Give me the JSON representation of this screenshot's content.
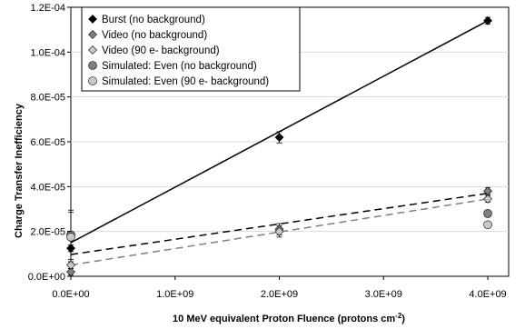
{
  "chart_data": {
    "type": "scatter",
    "title": "",
    "xlabel": "10 MeV equivalent Proton Fluence (protons cm",
    "xlabel_superscript": "-2",
    "xlabel_suffix": ")",
    "ylabel": "Charge Transfer Inefficiency",
    "xlim": [
      0,
      4200000000.0
    ],
    "ylim": [
      0,
      0.00012
    ],
    "x_ticks": [
      {
        "value": 0,
        "label": "0.0E+00"
      },
      {
        "value": 1000000000.0,
        "label": "1.0E+09"
      },
      {
        "value": 2000000000.0,
        "label": "2.0E+09"
      },
      {
        "value": 3000000000.0,
        "label": "3.0E+09"
      },
      {
        "value": 4000000000.0,
        "label": "4.0E+09"
      }
    ],
    "y_ticks": [
      {
        "value": 0,
        "label": "0.0E+00"
      },
      {
        "value": 2e-05,
        "label": "2.0E-05"
      },
      {
        "value": 4e-05,
        "label": "4.0E-05"
      },
      {
        "value": 6e-05,
        "label": "6.0E-05"
      },
      {
        "value": 8e-05,
        "label": "8.0E-05"
      },
      {
        "value": 0.0001,
        "label": "1.0E-04"
      },
      {
        "value": 0.00012,
        "label": "1.2E-04"
      }
    ],
    "legend_position": "top-left",
    "series": [
      {
        "name": "Burst (no background)",
        "marker": "diamond",
        "color": "#000000",
        "points": [
          {
            "x": 0,
            "y": 1.25e-05,
            "err": 1.5e-06
          },
          {
            "x": 2000000000.0,
            "y": 6.2e-05,
            "err": 2.5e-06
          },
          {
            "x": 4000000000.0,
            "y": 0.000114,
            "err": 1.5e-06
          }
        ],
        "fit": {
          "x": [
            0,
            4000000000.0
          ],
          "y": [
            1.5e-05,
            0.000114
          ],
          "dash": "solid",
          "color": "#000000"
        }
      },
      {
        "name": "Video (no background)",
        "marker": "diamond",
        "color": "#808080",
        "points": [
          {
            "x": 0,
            "y": 2e-06,
            "err": 1.5e-06
          },
          {
            "x": 2000000000.0,
            "y": 2.1e-05,
            "err": 2.5e-06
          },
          {
            "x": 4000000000.0,
            "y": 3.8e-05,
            "err": 1.5e-06
          }
        ],
        "fit": {
          "x": [
            0,
            4000000000.0
          ],
          "y": [
            9.7e-06,
            3.7e-05
          ],
          "dash": "dashed",
          "color": "#000000"
        }
      },
      {
        "name": "Video (90 e- background)",
        "marker": "diamond",
        "color": "#c8c8c8",
        "points": [
          {
            "x": 0,
            "y": 5e-06,
            "err": 1.5e-06
          },
          {
            "x": 2000000000.0,
            "y": 2e-05,
            "err": 2.5e-06
          },
          {
            "x": 4000000000.0,
            "y": 3.45e-05,
            "err": 1.5e-06
          }
        ],
        "fit": {
          "x": [
            0,
            4000000000.0
          ],
          "y": [
            5e-06,
            3.45e-05
          ],
          "dash": "dashed",
          "color": "#808080"
        }
      },
      {
        "name": "Simulated: Even (no background)",
        "marker": "circle",
        "color": "#808080",
        "points": [
          {
            "x": 0,
            "y": 1.85e-05,
            "err": 1.1e-05
          },
          {
            "x": 4000000000.0,
            "y": 2.8e-05,
            "err": 0
          }
        ]
      },
      {
        "name": "Simulated: Even (90 e- background)",
        "marker": "circle",
        "color": "#c8c8c8",
        "points": [
          {
            "x": 0,
            "y": 1.75e-05,
            "err": 1.1e-05
          },
          {
            "x": 4000000000.0,
            "y": 2.3e-05,
            "err": 0
          }
        ]
      }
    ]
  }
}
